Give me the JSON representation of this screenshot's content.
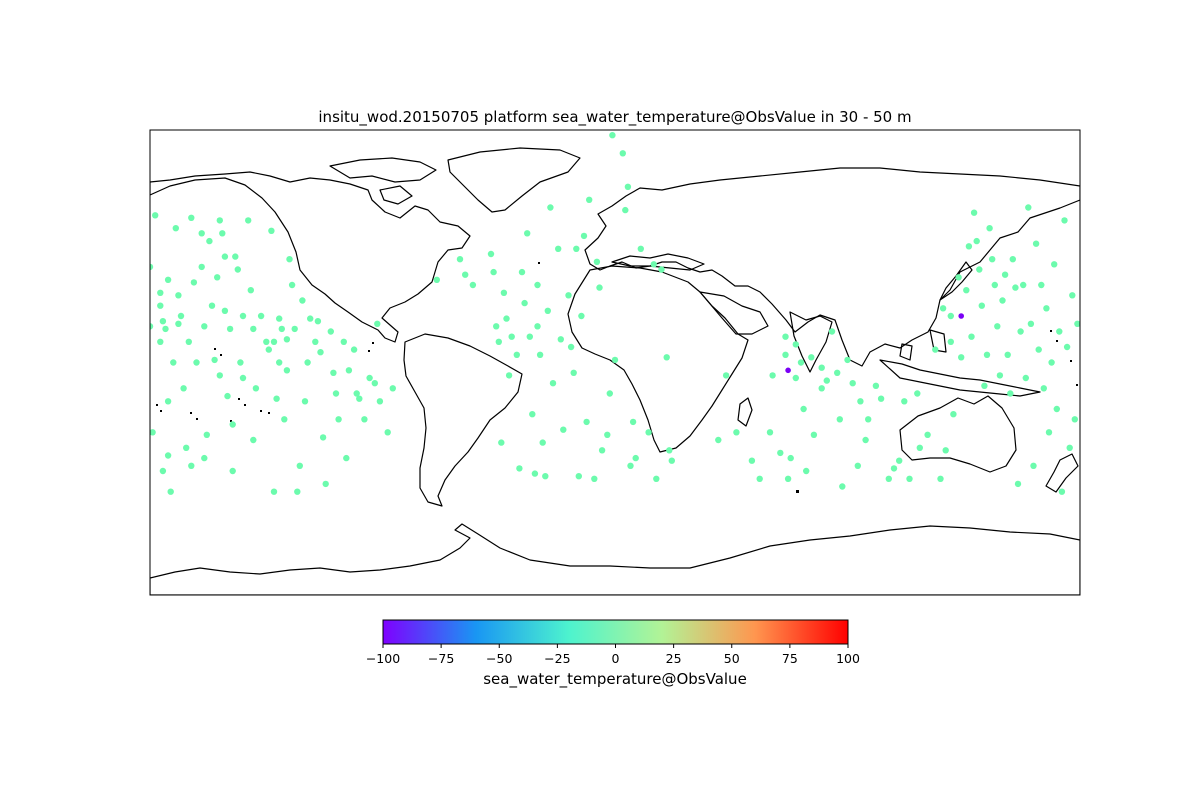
{
  "chart_data": {
    "type": "scatter",
    "title": "insitu_wod.20150705 platform sea_water_temperature@ObsValue in 30 - 50 m",
    "projection": "plate-carree",
    "xlim": [
      -180,
      180
    ],
    "ylim": [
      -90,
      90
    ],
    "grid": false,
    "marker_color_default": "#6cfbad",
    "marker_color_outlier": "#7a00f5",
    "colorbar": {
      "label": "sea_water_temperature@ObsValue",
      "min": -100,
      "max": 100,
      "ticks": [
        "−100",
        "−75",
        "−50",
        "−25",
        "0",
        "25",
        "50",
        "75",
        "100"
      ],
      "colormap": [
        "#7f00ff",
        "#1996f3",
        "#4df3ce",
        "#b2f396",
        "#ff964f",
        "#ff0000"
      ]
    },
    "points": [
      {
        "lon": 134.0,
        "lat": 18.0,
        "outlier": true
      },
      {
        "lon": 67.0,
        "lat": -3.0,
        "outlier": true
      },
      {
        "lon": -180,
        "lat": 37
      },
      {
        "lon": -180,
        "lat": 14
      },
      {
        "lon": -179,
        "lat": -27
      },
      {
        "lon": -178,
        "lat": 57
      },
      {
        "lon": -176,
        "lat": 27
      },
      {
        "lon": -176,
        "lat": 22
      },
      {
        "lon": -176,
        "lat": 8
      },
      {
        "lon": -175,
        "lat": 16
      },
      {
        "lon": -175,
        "lat": -42
      },
      {
        "lon": -174,
        "lat": 13
      },
      {
        "lon": -173,
        "lat": 32
      },
      {
        "lon": -173,
        "lat": -15
      },
      {
        "lon": -173,
        "lat": -36
      },
      {
        "lon": -172,
        "lat": -50
      },
      {
        "lon": -171,
        "lat": 0
      },
      {
        "lon": -170,
        "lat": 52
      },
      {
        "lon": -169,
        "lat": 26
      },
      {
        "lon": -169,
        "lat": 15
      },
      {
        "lon": -168,
        "lat": 18
      },
      {
        "lon": -167,
        "lat": -10
      },
      {
        "lon": -166,
        "lat": -33
      },
      {
        "lon": -165,
        "lat": 8
      },
      {
        "lon": -164,
        "lat": 56
      },
      {
        "lon": -164,
        "lat": -40
      },
      {
        "lon": -163,
        "lat": 31
      },
      {
        "lon": -162,
        "lat": 0
      },
      {
        "lon": -160,
        "lat": 50
      },
      {
        "lon": -160,
        "lat": 37
      },
      {
        "lon": -159,
        "lat": 14
      },
      {
        "lon": -159,
        "lat": -37
      },
      {
        "lon": -158,
        "lat": -28
      },
      {
        "lon": -157,
        "lat": 47
      },
      {
        "lon": -156,
        "lat": 22
      },
      {
        "lon": -155,
        "lat": 1
      },
      {
        "lon": -154,
        "lat": 33
      },
      {
        "lon": -153,
        "lat": 55
      },
      {
        "lon": -153,
        "lat": -5
      },
      {
        "lon": -152,
        "lat": 50
      },
      {
        "lon": -151,
        "lat": 41
      },
      {
        "lon": -151,
        "lat": 20
      },
      {
        "lon": -150,
        "lat": -13
      },
      {
        "lon": -149,
        "lat": 13
      },
      {
        "lon": -148,
        "lat": -24
      },
      {
        "lon": -148,
        "lat": -42
      },
      {
        "lon": -147,
        "lat": 41
      },
      {
        "lon": -146,
        "lat": 36
      },
      {
        "lon": -145,
        "lat": 0
      },
      {
        "lon": -144,
        "lat": 18
      },
      {
        "lon": -144,
        "lat": -6
      },
      {
        "lon": -142,
        "lat": 55
      },
      {
        "lon": -141,
        "lat": 28
      },
      {
        "lon": -140,
        "lat": 13
      },
      {
        "lon": -140,
        "lat": -30
      },
      {
        "lon": -139,
        "lat": -10
      },
      {
        "lon": -137,
        "lat": 18
      },
      {
        "lon": -135,
        "lat": 8
      },
      {
        "lon": -134,
        "lat": 5
      },
      {
        "lon": -133,
        "lat": 51
      },
      {
        "lon": -132,
        "lat": 8
      },
      {
        "lon": -132,
        "lat": -50
      },
      {
        "lon": -131,
        "lat": -14
      },
      {
        "lon": -130,
        "lat": 17
      },
      {
        "lon": -130,
        "lat": 0
      },
      {
        "lon": -129,
        "lat": 13
      },
      {
        "lon": -128,
        "lat": -22
      },
      {
        "lon": -127,
        "lat": 9
      },
      {
        "lon": -127,
        "lat": -3
      },
      {
        "lon": -126,
        "lat": 40
      },
      {
        "lon": -125,
        "lat": 30
      },
      {
        "lon": -124,
        "lat": 13
      },
      {
        "lon": -123,
        "lat": -50
      },
      {
        "lon": -122,
        "lat": -40
      },
      {
        "lon": -121,
        "lat": 24
      },
      {
        "lon": -120,
        "lat": -15
      },
      {
        "lon": -119,
        "lat": 0
      },
      {
        "lon": -118,
        "lat": 17
      },
      {
        "lon": -116,
        "lat": 8
      },
      {
        "lon": -115,
        "lat": 16
      },
      {
        "lon": -114,
        "lat": 4
      },
      {
        "lon": -113,
        "lat": -29
      },
      {
        "lon": -112,
        "lat": -47
      },
      {
        "lon": -110,
        "lat": 12
      },
      {
        "lon": -109,
        "lat": -4
      },
      {
        "lon": -108,
        "lat": -12
      },
      {
        "lon": -107,
        "lat": -22
      },
      {
        "lon": -105,
        "lat": 8
      },
      {
        "lon": -104,
        "lat": -37
      },
      {
        "lon": -103,
        "lat": -3
      },
      {
        "lon": -101,
        "lat": 5
      },
      {
        "lon": -100,
        "lat": -12
      },
      {
        "lon": -99,
        "lat": -14
      },
      {
        "lon": -97,
        "lat": -22
      },
      {
        "lon": -95,
        "lat": -6
      },
      {
        "lon": -93,
        "lat": -8
      },
      {
        "lon": -92,
        "lat": 15
      },
      {
        "lon": -91,
        "lat": -15
      },
      {
        "lon": -88,
        "lat": -27
      },
      {
        "lon": -86,
        "lat": -10
      },
      {
        "lon": -69,
        "lat": 32
      },
      {
        "lon": -60,
        "lat": 40
      },
      {
        "lon": -58,
        "lat": 34
      },
      {
        "lon": -55,
        "lat": 30
      },
      {
        "lon": -48,
        "lat": 42
      },
      {
        "lon": -47,
        "lat": 35
      },
      {
        "lon": -46,
        "lat": 14
      },
      {
        "lon": -45,
        "lat": 8
      },
      {
        "lon": -44,
        "lat": -31
      },
      {
        "lon": -43,
        "lat": 27
      },
      {
        "lon": -42,
        "lat": 17
      },
      {
        "lon": -41,
        "lat": -5
      },
      {
        "lon": -40,
        "lat": 10
      },
      {
        "lon": -38,
        "lat": 3
      },
      {
        "lon": -37,
        "lat": -41
      },
      {
        "lon": -36,
        "lat": 35
      },
      {
        "lon": -35,
        "lat": 23
      },
      {
        "lon": -34,
        "lat": 50
      },
      {
        "lon": -33,
        "lat": 10
      },
      {
        "lon": -32,
        "lat": -20
      },
      {
        "lon": -31,
        "lat": -43
      },
      {
        "lon": -30,
        "lat": 30
      },
      {
        "lon": -30,
        "lat": 14
      },
      {
        "lon": -29,
        "lat": 3
      },
      {
        "lon": -28,
        "lat": -31
      },
      {
        "lon": -27,
        "lat": -44
      },
      {
        "lon": -26,
        "lat": 20
      },
      {
        "lon": -25,
        "lat": 60
      },
      {
        "lon": -24,
        "lat": -8
      },
      {
        "lon": -22,
        "lat": 44
      },
      {
        "lon": -21,
        "lat": 9
      },
      {
        "lon": -20,
        "lat": -26
      },
      {
        "lon": -18,
        "lat": 26
      },
      {
        "lon": -17,
        "lat": 6
      },
      {
        "lon": -16,
        "lat": -4
      },
      {
        "lon": -15,
        "lat": 44
      },
      {
        "lon": -14,
        "lat": -44
      },
      {
        "lon": -13,
        "lat": 18
      },
      {
        "lon": -12,
        "lat": 49
      },
      {
        "lon": -11,
        "lat": -23
      },
      {
        "lon": -10,
        "lat": 63
      },
      {
        "lon": -8,
        "lat": -45
      },
      {
        "lon": -7,
        "lat": 39
      },
      {
        "lon": -6,
        "lat": 29
      },
      {
        "lon": -5,
        "lat": -34
      },
      {
        "lon": -3,
        "lat": -28
      },
      {
        "lon": -2,
        "lat": -12
      },
      {
        "lon": 0,
        "lat": 1
      },
      {
        "lon": -1,
        "lat": 88
      },
      {
        "lon": 3,
        "lat": 81
      },
      {
        "lon": 4,
        "lat": 59
      },
      {
        "lon": 5,
        "lat": 68
      },
      {
        "lon": 6,
        "lat": -40
      },
      {
        "lon": 7,
        "lat": -23
      },
      {
        "lon": 8,
        "lat": -37
      },
      {
        "lon": 10,
        "lat": 44
      },
      {
        "lon": 13,
        "lat": -27
      },
      {
        "lon": 15,
        "lat": 38
      },
      {
        "lon": 16,
        "lat": -45
      },
      {
        "lon": 18,
        "lat": 36
      },
      {
        "lon": 20,
        "lat": 2
      },
      {
        "lon": 21,
        "lat": -34
      },
      {
        "lon": 22,
        "lat": -38
      },
      {
        "lon": 40,
        "lat": -30
      },
      {
        "lon": 43,
        "lat": -5
      },
      {
        "lon": 47,
        "lat": -27
      },
      {
        "lon": 53,
        "lat": -38
      },
      {
        "lon": 56,
        "lat": -45
      },
      {
        "lon": 60,
        "lat": -27
      },
      {
        "lon": 61,
        "lat": -5
      },
      {
        "lon": 64,
        "lat": -35
      },
      {
        "lon": 66,
        "lat": 10
      },
      {
        "lon": 66,
        "lat": 3
      },
      {
        "lon": 67,
        "lat": -45
      },
      {
        "lon": 68,
        "lat": -37
      },
      {
        "lon": 70,
        "lat": 7
      },
      {
        "lon": 70,
        "lat": -6
      },
      {
        "lon": 72,
        "lat": 0
      },
      {
        "lon": 73,
        "lat": -18
      },
      {
        "lon": 74,
        "lat": -42
      },
      {
        "lon": 76,
        "lat": 2
      },
      {
        "lon": 77,
        "lat": -28
      },
      {
        "lon": 80,
        "lat": -2
      },
      {
        "lon": 80,
        "lat": -10
      },
      {
        "lon": 82,
        "lat": -7
      },
      {
        "lon": 84,
        "lat": 12
      },
      {
        "lon": 86,
        "lat": -4
      },
      {
        "lon": 87,
        "lat": -22
      },
      {
        "lon": 88,
        "lat": -48
      },
      {
        "lon": 90,
        "lat": 1
      },
      {
        "lon": 92,
        "lat": -8
      },
      {
        "lon": 94,
        "lat": -40
      },
      {
        "lon": 95,
        "lat": -15
      },
      {
        "lon": 97,
        "lat": -30
      },
      {
        "lon": 98,
        "lat": -22
      },
      {
        "lon": 101,
        "lat": -9
      },
      {
        "lon": 103,
        "lat": -14
      },
      {
        "lon": 106,
        "lat": -45
      },
      {
        "lon": 108,
        "lat": -41
      },
      {
        "lon": 110,
        "lat": -38
      },
      {
        "lon": 112,
        "lat": -15
      },
      {
        "lon": 114,
        "lat": -45
      },
      {
        "lon": 117,
        "lat": -12
      },
      {
        "lon": 118,
        "lat": -33
      },
      {
        "lon": 121,
        "lat": -28
      },
      {
        "lon": 124,
        "lat": 5
      },
      {
        "lon": 126,
        "lat": -45
      },
      {
        "lon": 127,
        "lat": 21
      },
      {
        "lon": 128,
        "lat": -34
      },
      {
        "lon": 130,
        "lat": 18
      },
      {
        "lon": 130,
        "lat": 8
      },
      {
        "lon": 131,
        "lat": -20
      },
      {
        "lon": 133,
        "lat": 33
      },
      {
        "lon": 134,
        "lat": 2
      },
      {
        "lon": 136,
        "lat": 28
      },
      {
        "lon": 137,
        "lat": 45
      },
      {
        "lon": 138,
        "lat": 10
      },
      {
        "lon": 139,
        "lat": 58
      },
      {
        "lon": 140,
        "lat": 47
      },
      {
        "lon": 141,
        "lat": 36
      },
      {
        "lon": 142,
        "lat": 22
      },
      {
        "lon": 143,
        "lat": -9
      },
      {
        "lon": 144,
        "lat": 3
      },
      {
        "lon": 145,
        "lat": 52
      },
      {
        "lon": 146,
        "lat": 40
      },
      {
        "lon": 147,
        "lat": 30
      },
      {
        "lon": 148,
        "lat": 14
      },
      {
        "lon": 149,
        "lat": -5
      },
      {
        "lon": 150,
        "lat": 24
      },
      {
        "lon": 151,
        "lat": 34
      },
      {
        "lon": 152,
        "lat": 3
      },
      {
        "lon": 153,
        "lat": -12
      },
      {
        "lon": 154,
        "lat": 40
      },
      {
        "lon": 155,
        "lat": 29
      },
      {
        "lon": 156,
        "lat": -47
      },
      {
        "lon": 157,
        "lat": 12
      },
      {
        "lon": 158,
        "lat": 30
      },
      {
        "lon": 159,
        "lat": -6
      },
      {
        "lon": 160,
        "lat": 60
      },
      {
        "lon": 161,
        "lat": 15
      },
      {
        "lon": 162,
        "lat": -40
      },
      {
        "lon": 163,
        "lat": 46
      },
      {
        "lon": 164,
        "lat": 5
      },
      {
        "lon": 165,
        "lat": 30
      },
      {
        "lon": 166,
        "lat": -10
      },
      {
        "lon": 167,
        "lat": 21
      },
      {
        "lon": 168,
        "lat": -27
      },
      {
        "lon": 169,
        "lat": 0
      },
      {
        "lon": 170,
        "lat": 38
      },
      {
        "lon": 171,
        "lat": -18
      },
      {
        "lon": 172,
        "lat": 12
      },
      {
        "lon": 173,
        "lat": -50
      },
      {
        "lon": 174,
        "lat": 55
      },
      {
        "lon": 175,
        "lat": 6
      },
      {
        "lon": 176,
        "lat": -33
      },
      {
        "lon": 177,
        "lat": 26
      },
      {
        "lon": 178,
        "lat": -22
      },
      {
        "lon": 179,
        "lat": 15
      }
    ]
  }
}
